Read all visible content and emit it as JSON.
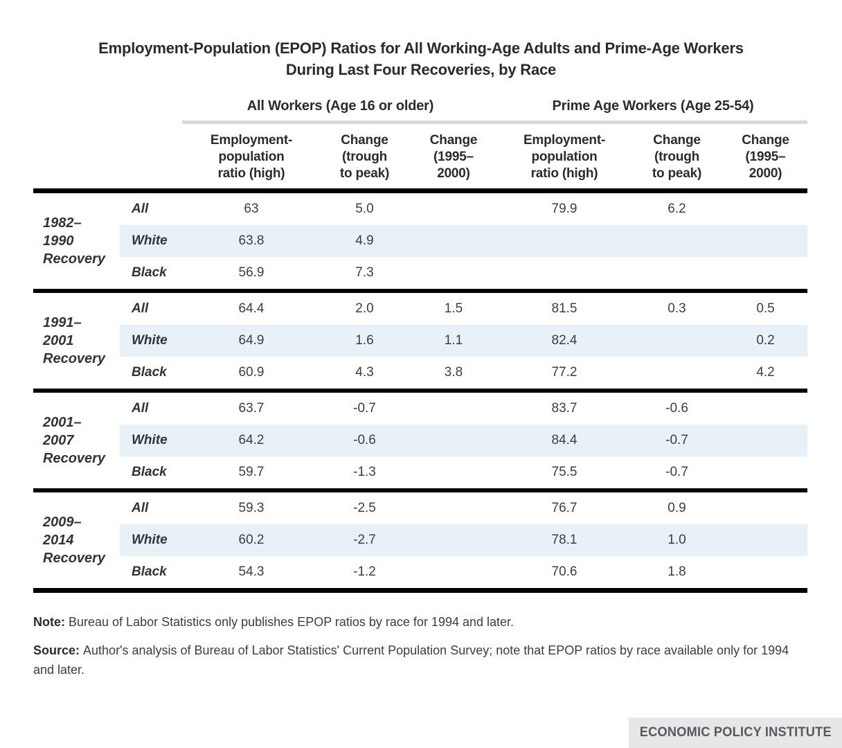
{
  "chart_data": {
    "type": "table",
    "title": "Employment-Population (EPOP) Ratios for All Working-Age Adults and Prime-Age Workers\nDuring Last Four Recoveries, by Race",
    "groups": [
      "All Workers (Age 16 or older)",
      "Prime Age Workers (Age 25-54)"
    ],
    "columns": [
      "Employment-\npopulation\nratio (high)",
      "Change\n(trough\nto peak)",
      "Change\n(1995–\n2000)",
      "Employment-\npopulation\nratio (high)",
      "Change\n(trough\nto peak)",
      "Change\n(1995–\n2000)"
    ],
    "blocks": [
      {
        "period": "1982–\n1990\nRecovery",
        "rows": [
          {
            "race": "All",
            "values": [
              "63",
              "5.0",
              "",
              "79.9",
              "6.2",
              ""
            ]
          },
          {
            "race": "White",
            "values": [
              "63.8",
              "4.9",
              "",
              "",
              "",
              ""
            ]
          },
          {
            "race": "Black",
            "values": [
              "56.9",
              "7.3",
              "",
              "",
              "",
              ""
            ]
          }
        ]
      },
      {
        "period": "1991–\n2001\nRecovery",
        "rows": [
          {
            "race": "All",
            "values": [
              "64.4",
              "2.0",
              "1.5",
              "81.5",
              "0.3",
              "0.5"
            ]
          },
          {
            "race": "White",
            "values": [
              "64.9",
              "1.6",
              "1.1",
              "82.4",
              "",
              "0.2"
            ]
          },
          {
            "race": "Black",
            "values": [
              "60.9",
              "4.3",
              "3.8",
              "77.2",
              "",
              "4.2"
            ]
          }
        ]
      },
      {
        "period": "2001–\n2007\nRecovery",
        "rows": [
          {
            "race": "All",
            "values": [
              "63.7",
              "-0.7",
              "",
              "83.7",
              "-0.6",
              ""
            ]
          },
          {
            "race": "White",
            "values": [
              "64.2",
              "-0.6",
              "",
              "84.4",
              "-0.7",
              ""
            ]
          },
          {
            "race": "Black",
            "values": [
              "59.7",
              "-1.3",
              "",
              "75.5",
              "-0.7",
              ""
            ]
          }
        ]
      },
      {
        "period": "2009–\n2014\nRecovery",
        "rows": [
          {
            "race": "All",
            "values": [
              "59.3",
              "-2.5",
              "",
              "76.7",
              "0.9",
              ""
            ]
          },
          {
            "race": "White",
            "values": [
              "60.2",
              "-2.7",
              "",
              "78.1",
              "1.0",
              ""
            ]
          },
          {
            "race": "Black",
            "values": [
              "54.3",
              "-1.2",
              "",
              "70.6",
              "1.8",
              ""
            ]
          }
        ]
      }
    ]
  },
  "note": {
    "label": "Note:",
    "text": "Bureau of Labor Statistics only publishes EPOP ratios by race for 1994 and later."
  },
  "source": {
    "label": "Source:",
    "text": "Author's analysis of Bureau of Labor Statistics' Current Population Survey; note that EPOP ratios by race available only for 1994 and later."
  },
  "logo": "ECONOMIC POLICY INSTITUTE",
  "colors": {
    "row_highlight": "#e9f1f8",
    "rule_gray": "#d8d8d8",
    "border_black": "#000000",
    "logo_bg": "#e7e7e7",
    "logo_text": "#58595b"
  }
}
